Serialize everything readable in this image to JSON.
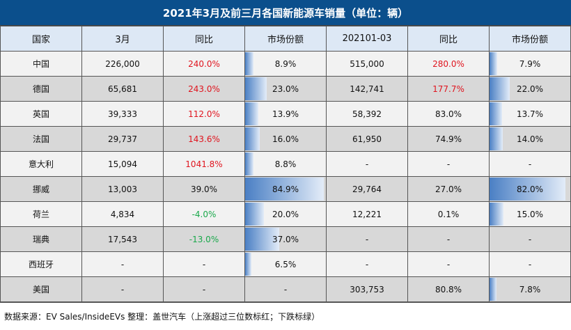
{
  "title": "2021年3月及前三月各国新能源车销量（单位：辆）",
  "headers": [
    "国家",
    "3月",
    "同比",
    "市场份额",
    "202101-03",
    "同比",
    "市场份额"
  ],
  "rows": [
    {
      "country": "中国",
      "mar": "226,000",
      "yoy1": "240.0%",
      "yoy1_color": "red",
      "share1": "8.9%",
      "share1_value": 8.9,
      "q1": "515,000",
      "yoy2": "280.0%",
      "yoy2_color": "red",
      "share2": "7.9%",
      "share2_value": 7.9
    },
    {
      "country": "德国",
      "mar": "65,681",
      "yoy1": "243.0%",
      "yoy1_color": "red",
      "share1": "23.0%",
      "share1_value": 23.0,
      "q1": "142,741",
      "yoy2": "177.7%",
      "yoy2_color": "red",
      "share2": "22.0%",
      "share2_value": 22.0
    },
    {
      "country": "英国",
      "mar": "39,333",
      "yoy1": "112.0%",
      "yoy1_color": "red",
      "share1": "13.9%",
      "share1_value": 13.9,
      "q1": "58,392",
      "yoy2": "83.0%",
      "yoy2_color": "",
      "share2": "13.7%",
      "share2_value": 13.7
    },
    {
      "country": "法国",
      "mar": "29,737",
      "yoy1": "143.6%",
      "yoy1_color": "red",
      "share1": "16.0%",
      "share1_value": 16.0,
      "q1": "61,950",
      "yoy2": "74.9%",
      "yoy2_color": "",
      "share2": "14.0%",
      "share2_value": 14.0
    },
    {
      "country": "意大利",
      "mar": "15,094",
      "yoy1": "1041.8%",
      "yoy1_color": "red",
      "share1": "8.8%",
      "share1_value": 8.8,
      "q1": "-",
      "yoy2": "-",
      "yoy2_color": "",
      "share2": "-",
      "share2_value": 0
    },
    {
      "country": "挪威",
      "mar": "13,003",
      "yoy1": "39.0%",
      "yoy1_color": "",
      "share1": "84.9%",
      "share1_value": 84.9,
      "q1": "29,764",
      "yoy2": "27.0%",
      "yoy2_color": "",
      "share2": "82.0%",
      "share2_value": 82.0
    },
    {
      "country": "荷兰",
      "mar": "4,834",
      "yoy1": "-4.0%",
      "yoy1_color": "green",
      "share1": "20.0%",
      "share1_value": 20.0,
      "q1": "12,221",
      "yoy2": "0.1%",
      "yoy2_color": "",
      "share2": "15.0%",
      "share2_value": 15.0
    },
    {
      "country": "瑞典",
      "mar": "17,543",
      "yoy1": "-13.0%",
      "yoy1_color": "green",
      "share1": "37.0%",
      "share1_value": 37.0,
      "q1": "-",
      "yoy2": "-",
      "yoy2_color": "",
      "share2": "-",
      "share2_value": 0
    },
    {
      "country": "西班牙",
      "mar": "-",
      "yoy1": "-",
      "yoy1_color": "",
      "share1": "6.5%",
      "share1_value": 6.5,
      "q1": "-",
      "yoy2": "-",
      "yoy2_color": "",
      "share2": "-",
      "share2_value": 0
    },
    {
      "country": "美国",
      "mar": "-",
      "yoy1": "-",
      "yoy1_color": "",
      "share1": "-",
      "share1_value": 0,
      "q1": "303,753",
      "yoy2": "80.8%",
      "yoy2_color": "",
      "share2": "7.8%",
      "share2_value": 7.8
    }
  ],
  "footer": "数据来源：EV Sales/InsideEVs 整理：盖世汽车（上涨超过三位数标红；下跌标绿）",
  "colors": {
    "title_bg": "#0b4f8c",
    "header_bg": "#dde8f5",
    "up": "#e0141e",
    "down": "#19a84a",
    "bar": "#4a7fc4"
  }
}
